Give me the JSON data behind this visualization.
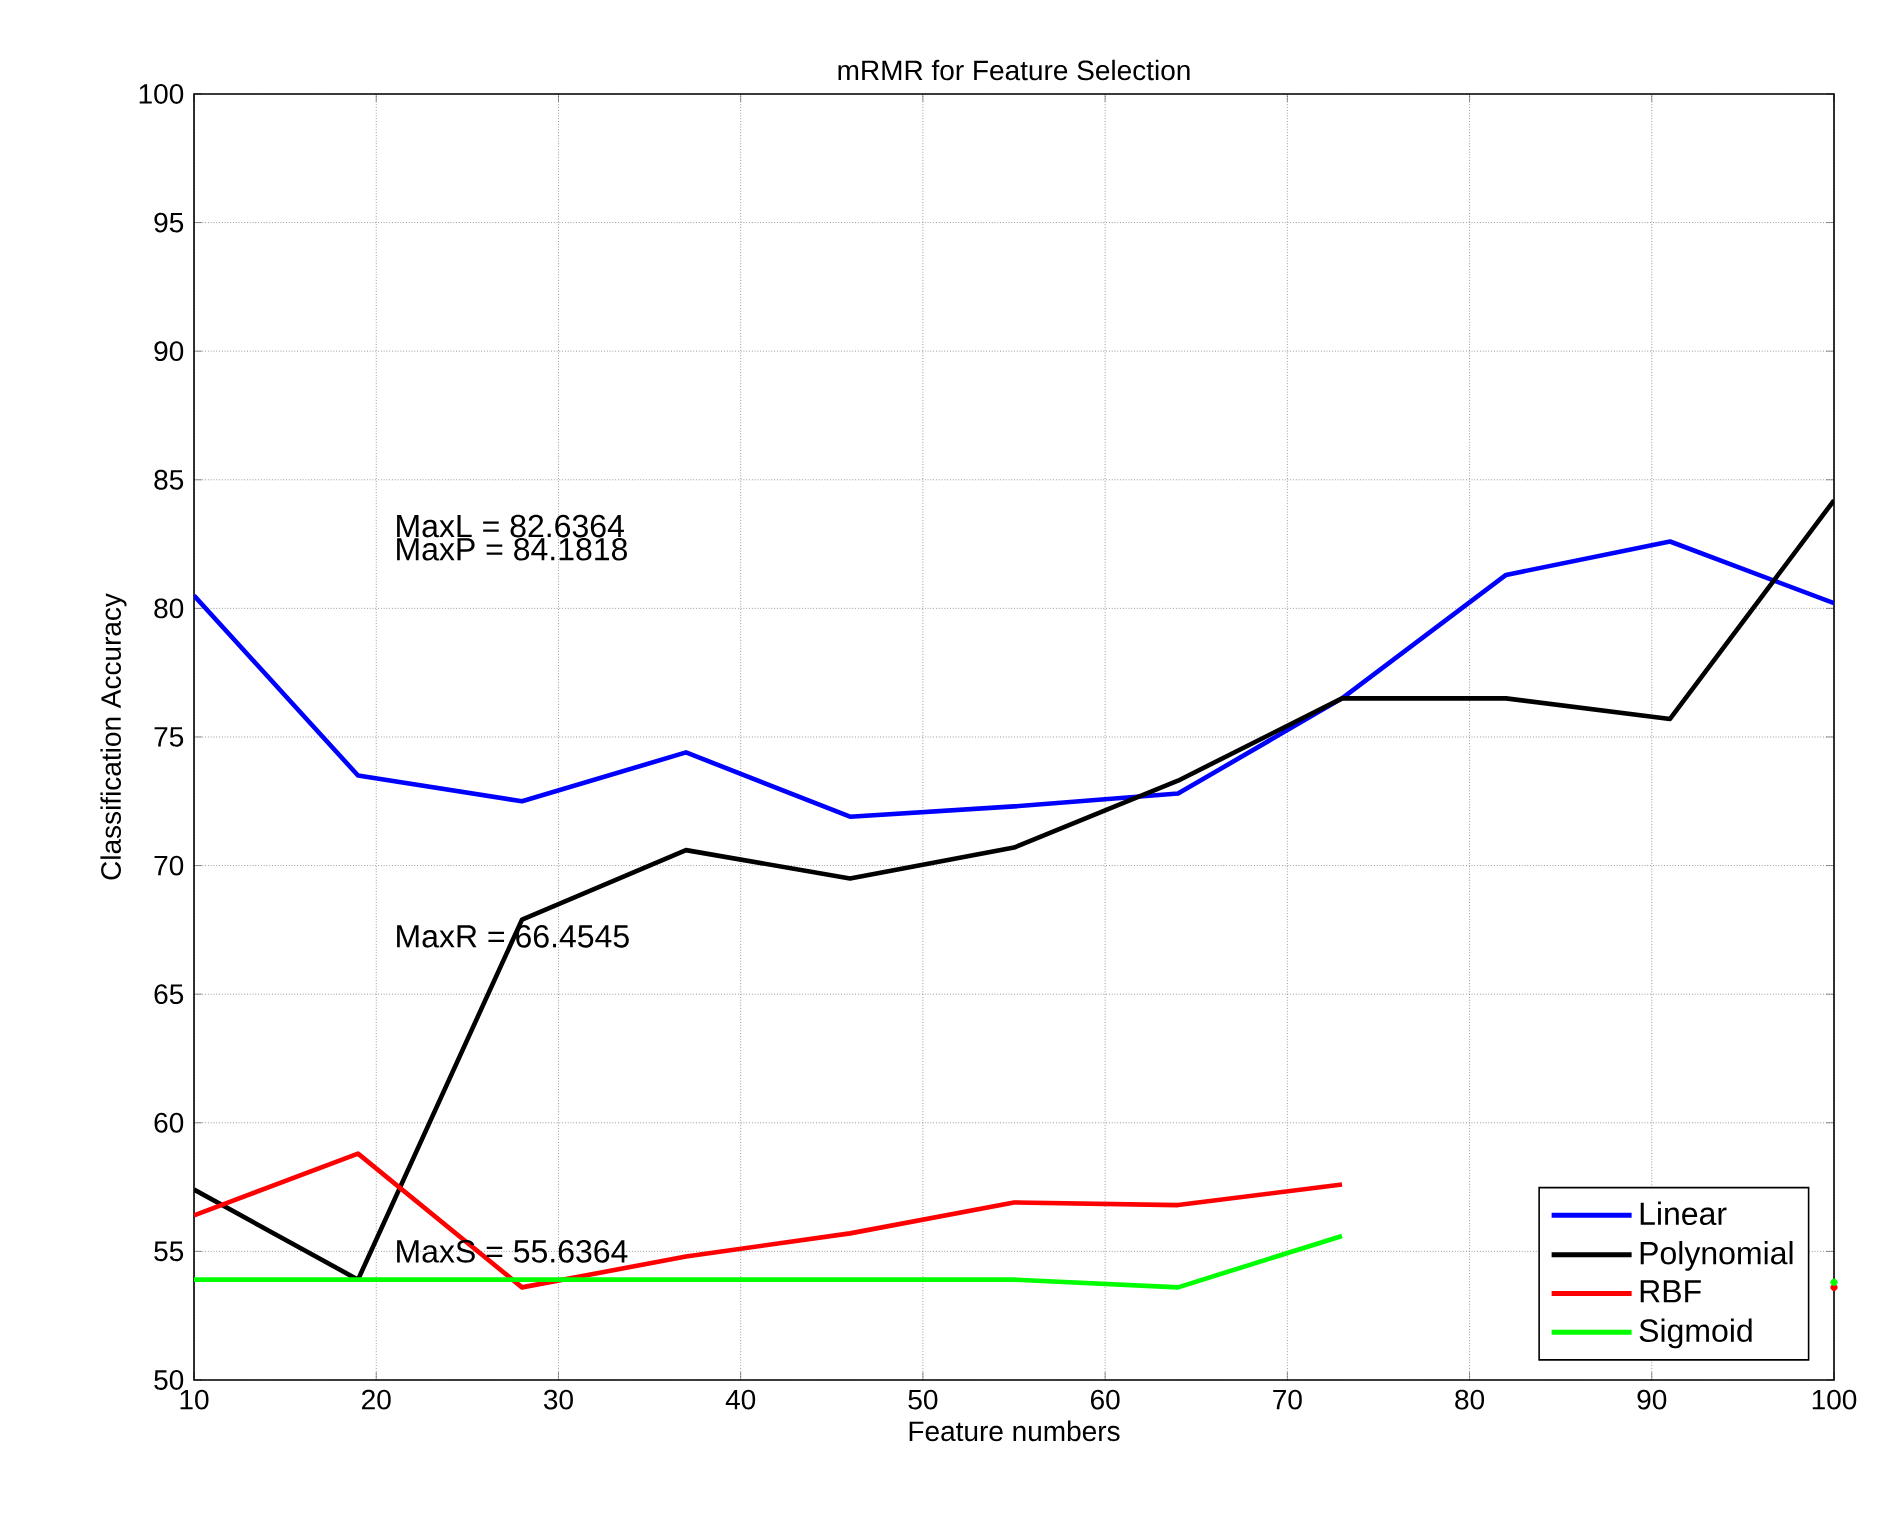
{
  "chart_data": {
    "type": "line",
    "title": "mRMR for Feature Selection",
    "xlabel": "Feature numbers",
    "ylabel": "Classification Accuracy",
    "x": [
      10,
      19,
      28,
      37,
      46,
      55,
      64,
      73,
      82,
      91,
      100
    ],
    "series": [
      {
        "name": "Linear",
        "color": "#0000ff",
        "values": [
          80.5,
          73.5,
          72.5,
          74.4,
          71.9,
          72.3,
          72.8,
          76.5,
          81.3,
          82.6,
          80.2
        ]
      },
      {
        "name": "Polynomial",
        "color": "#000000",
        "values": [
          57.4,
          53.9,
          67.9,
          70.6,
          69.5,
          70.7,
          73.3,
          76.5,
          76.5,
          75.7,
          84.2
        ]
      },
      {
        "name": "RBF",
        "color": "#ff0000",
        "values": [
          56.4,
          58.8,
          53.6,
          54.8,
          55.7,
          56.9,
          56.8,
          57.6,
          null,
          null,
          53.6
        ]
      },
      {
        "name": "Sigmoid",
        "color": "#00ff00",
        "values": [
          53.9,
          53.9,
          53.9,
          53.9,
          53.9,
          53.9,
          53.6,
          55.6,
          null,
          null,
          53.8
        ]
      }
    ],
    "annotations": [
      "MaxL = 82.6364",
      "MaxP = 84.1818",
      "MaxR = 66.4545",
      "MaxS = 55.6364"
    ],
    "xlim": [
      10,
      100
    ],
    "ylim": [
      50,
      100
    ],
    "xticks": [
      10,
      20,
      30,
      40,
      50,
      60,
      70,
      80,
      90,
      100
    ],
    "yticks": [
      50,
      55,
      60,
      65,
      70,
      75,
      80,
      85,
      90,
      95,
      100
    ],
    "grid": true,
    "legend": "bottom right",
    "line_style": "solid",
    "marker": "none"
  }
}
